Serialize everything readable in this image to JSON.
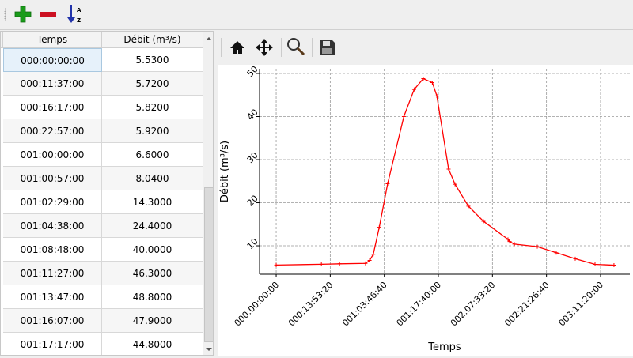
{
  "toolbar": {
    "buttons": [
      {
        "name": "add-row",
        "icon": "plus-icon",
        "color": "#1a9b1a"
      },
      {
        "name": "remove-row",
        "icon": "minus-icon",
        "color": "#cc1122"
      },
      {
        "name": "sort",
        "icon": "sort-az-icon",
        "color": "#2233aa"
      }
    ]
  },
  "table": {
    "columns": [
      "Temps",
      "Débit (m³/s)"
    ],
    "rows": [
      [
        "000:00:00:00",
        "5.5300"
      ],
      [
        "000:11:37:00",
        "5.7200"
      ],
      [
        "000:16:17:00",
        "5.8200"
      ],
      [
        "000:22:57:00",
        "5.9200"
      ],
      [
        "001:00:00:00",
        "6.6000"
      ],
      [
        "001:00:57:00",
        "8.0400"
      ],
      [
        "001:02:29:00",
        "14.3000"
      ],
      [
        "001:04:38:00",
        "24.4000"
      ],
      [
        "001:08:48:00",
        "40.0000"
      ],
      [
        "001:11:27:00",
        "46.3000"
      ],
      [
        "001:13:47:00",
        "48.8000"
      ],
      [
        "001:16:07:00",
        "47.9000"
      ],
      [
        "001:17:17:00",
        "44.8000"
      ]
    ]
  },
  "plot_toolbar": {
    "buttons": [
      "home-icon",
      "pan-icon",
      "zoom-icon",
      "save-icon"
    ]
  },
  "chart_data": {
    "type": "line",
    "xlabel": "Temps",
    "ylabel": "Débit (m³/s)",
    "color": "#ff0000",
    "marker": "+",
    "grid": true,
    "x_ticks": [
      "000:00:00:00",
      "000:13:53:20",
      "001:03:46:40",
      "001:17:40:00",
      "002:07:33:20",
      "002:21:26:40",
      "003:11:20:00"
    ],
    "y_ticks": [
      10,
      20,
      30,
      40,
      50
    ],
    "ylim": [
      3.4,
      51.1
    ],
    "x": [
      "000:00:00:00",
      "000:11:37:00",
      "000:16:17:00",
      "000:22:57:00",
      "001:00:00:00",
      "001:00:57:00",
      "001:02:29:00",
      "001:04:38:00",
      "001:08:48:00",
      "001:11:27:00",
      "001:13:47:00",
      "001:16:07:00",
      "001:17:17:00",
      "001:20:18:00",
      "001:21:57:00",
      "002:01:23:00",
      "002:05:15:00",
      "002:11:33:00",
      "002:11:58:00",
      "002:13:12:00",
      "002:19:05:00",
      "002:23:57:00",
      "003:04:50:00",
      "003:09:55:00",
      "003:14:47:00"
    ],
    "y": [
      5.53,
      5.72,
      5.82,
      5.92,
      6.6,
      8.04,
      14.3,
      24.4,
      40.0,
      46.3,
      48.8,
      47.9,
      44.8,
      27.8,
      24.3,
      19.2,
      15.7,
      11.5,
      11.0,
      10.4,
      9.8,
      8.4,
      7.0,
      5.7,
      5.5
    ]
  }
}
